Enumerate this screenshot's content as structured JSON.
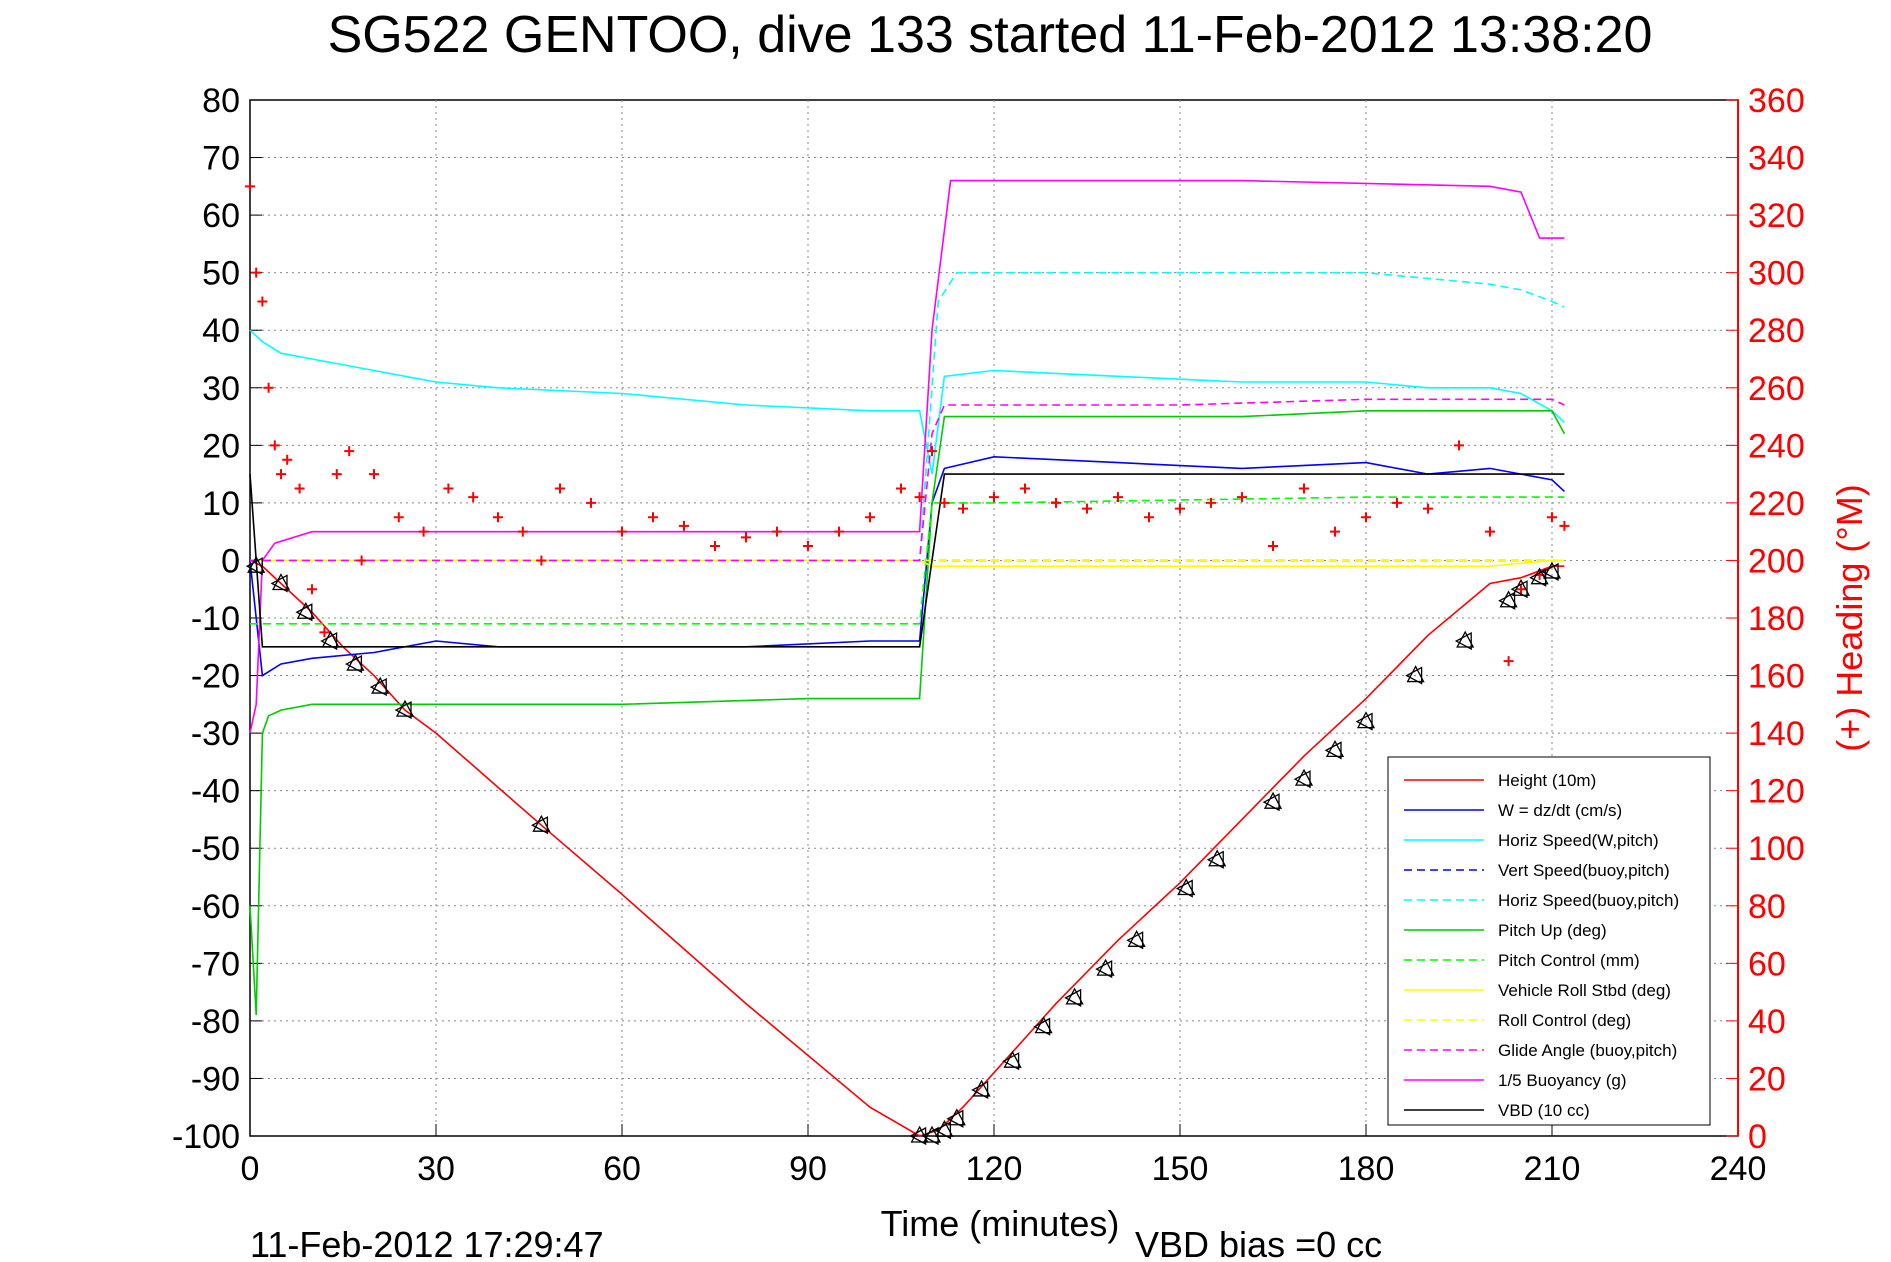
{
  "chart_data": {
    "type": "line",
    "title": "SG522 GENTOO, dive 133 started 11-Feb-2012 13:38:20",
    "xlabel": "Time (minutes)",
    "ylabel_right": "(+) Heading (°M)",
    "footer_left": "11-Feb-2012 17:29:47",
    "footer_right": "VBD bias =0 cc",
    "xlim": [
      0,
      240
    ],
    "ylim": [
      -100,
      80
    ],
    "y2lim": [
      0,
      360
    ],
    "x_ticks": [
      0,
      30,
      60,
      90,
      120,
      150,
      180,
      210,
      240
    ],
    "y_ticks": [
      80,
      70,
      60,
      50,
      40,
      30,
      20,
      10,
      0,
      -10,
      -20,
      -30,
      -40,
      -50,
      -60,
      -70,
      -80,
      -90,
      -100
    ],
    "y2_ticks": [
      360,
      340,
      320,
      300,
      280,
      260,
      240,
      220,
      200,
      180,
      160,
      140,
      120,
      100,
      80,
      60,
      40,
      20,
      0
    ],
    "grid": true,
    "legend_position": "bottom-right",
    "series": [
      {
        "name": "Height (10m)",
        "color": "#ff0000",
        "dash": false,
        "x": [
          0,
          2,
          5,
          10,
          15,
          20,
          25,
          30,
          47,
          60,
          80,
          100,
          108,
          111,
          115,
          120,
          130,
          140,
          150,
          160,
          170,
          180,
          190,
          200,
          205,
          210,
          212
        ],
        "y": [
          0,
          -1,
          -4,
          -9,
          -15,
          -20,
          -26,
          -30,
          -46,
          -58,
          -77,
          -95,
          -100,
          -99,
          -95,
          -89,
          -77,
          -66,
          -56,
          -45,
          -34,
          -24,
          -13,
          -4,
          -3,
          -1,
          -1
        ]
      },
      {
        "name": "W = dz/dt (cm/s)",
        "color": "#0000ff",
        "dash": false,
        "x": [
          0,
          2,
          5,
          10,
          20,
          30,
          40,
          60,
          80,
          100,
          108,
          110,
          112,
          120,
          140,
          160,
          180,
          190,
          200,
          205,
          210,
          212
        ],
        "y": [
          0,
          -20,
          -18,
          -17,
          -16,
          -14,
          -15,
          -15,
          -15,
          -14,
          -14,
          10,
          16,
          18,
          17,
          16,
          17,
          15,
          16,
          15,
          14,
          12
        ]
      },
      {
        "name": "Horiz Speed(W,pitch)",
        "color": "#00ffff",
        "dash": false,
        "x": [
          0,
          2,
          5,
          10,
          20,
          30,
          40,
          60,
          80,
          100,
          108,
          110,
          112,
          120,
          140,
          160,
          180,
          190,
          200,
          205,
          210,
          212
        ],
        "y": [
          40,
          38,
          36,
          35,
          33,
          31,
          30,
          29,
          27,
          26,
          26,
          15,
          32,
          33,
          32,
          31,
          31,
          30,
          30,
          29,
          26,
          24
        ]
      },
      {
        "name": "Vert Speed(buoy,pitch)",
        "color": "#0000ff",
        "dash": true,
        "x": [
          0,
          2,
          108,
          110,
          112,
          212
        ],
        "y": [
          0,
          0,
          0,
          0,
          0,
          0
        ]
      },
      {
        "name": "Horiz Speed(buoy,pitch)",
        "color": "#00ffff",
        "dash": true,
        "x": [
          0,
          5,
          108,
          111,
          114,
          150,
          180,
          200,
          205,
          210,
          212
        ],
        "y": [
          0,
          0,
          0,
          45,
          50,
          50,
          50,
          48,
          47,
          45,
          44
        ]
      },
      {
        "name": "Pitch Up (deg)",
        "color": "#00cc00",
        "dash": false,
        "x": [
          0,
          1,
          2,
          3,
          5,
          10,
          30,
          60,
          90,
          108,
          110,
          112,
          130,
          160,
          180,
          200,
          210,
          212
        ],
        "y": [
          -60,
          -79,
          -30,
          -27,
          -26,
          -25,
          -25,
          -25,
          -24,
          -24,
          10,
          25,
          25,
          25,
          26,
          26,
          26,
          22
        ]
      },
      {
        "name": "Pitch Control (mm)",
        "color": "#00ff00",
        "dash": true,
        "x": [
          0,
          3,
          60,
          108,
          110,
          120,
          180,
          212
        ],
        "y": [
          -11,
          -11,
          -11,
          -11,
          10,
          10,
          11,
          11
        ]
      },
      {
        "name": "Vehicle Roll Stbd (deg)",
        "color": "#ffff00",
        "dash": false,
        "x": [
          0,
          3,
          10,
          30,
          60,
          90,
          108,
          110,
          130,
          160,
          180,
          200,
          210,
          212
        ],
        "y": [
          0,
          0,
          0,
          0,
          0,
          0,
          0,
          -1,
          -1,
          -1,
          -1,
          -1,
          0,
          0
        ]
      },
      {
        "name": "Roll Control (deg)",
        "color": "#ffff00",
        "dash": true,
        "x": [
          0,
          212
        ],
        "y": [
          0,
          0
        ]
      },
      {
        "name": "Glide Angle (buoy,pitch)",
        "color": "#ff00ff",
        "dash": true,
        "x": [
          0,
          3,
          108,
          110,
          112,
          150,
          180,
          210,
          212
        ],
        "y": [
          0,
          0,
          0,
          22,
          27,
          27,
          28,
          28,
          27
        ]
      },
      {
        "name": "1/5 Buoyancy (g)",
        "color": "#ff00ff",
        "dash": false,
        "x": [
          0,
          1,
          2,
          4,
          10,
          30,
          60,
          90,
          108,
          110,
          113,
          130,
          160,
          200,
          205,
          208,
          212
        ],
        "y": [
          -30,
          -25,
          0,
          3,
          5,
          5,
          5,
          5,
          5,
          40,
          66,
          66,
          66,
          65,
          64,
          56,
          56
        ]
      },
      {
        "name": "VBD (10 cc)",
        "color": "#000000",
        "dash": false,
        "x": [
          0,
          1,
          2,
          108,
          110,
          112,
          150,
          212
        ],
        "y": [
          15,
          0,
          -15,
          -15,
          0,
          15,
          15,
          15
        ]
      }
    ],
    "heading_series": {
      "name": "(+) Heading",
      "color": "#ff0000",
      "marker": "+",
      "axis": "right",
      "x": [
        0,
        1,
        2,
        3,
        4,
        5,
        6,
        8,
        10,
        12,
        14,
        16,
        18,
        20,
        24,
        28,
        32,
        36,
        40,
        44,
        47,
        50,
        55,
        60,
        65,
        70,
        75,
        80,
        85,
        90,
        95,
        100,
        105,
        108,
        110,
        112,
        115,
        120,
        125,
        130,
        135,
        140,
        145,
        150,
        155,
        160,
        165,
        170,
        175,
        180,
        185,
        190,
        195,
        200,
        203,
        205,
        208,
        210,
        212
      ],
      "y": [
        330,
        300,
        290,
        260,
        240,
        230,
        235,
        225,
        190,
        175,
        230,
        238,
        200,
        230,
        215,
        210,
        225,
        222,
        215,
        210,
        200,
        225,
        220,
        210,
        215,
        212,
        205,
        208,
        210,
        205,
        210,
        215,
        225,
        222,
        238,
        220,
        218,
        222,
        225,
        220,
        218,
        222,
        215,
        218,
        220,
        222,
        205,
        225,
        210,
        215,
        220,
        218,
        240,
        210,
        165,
        190,
        195,
        215,
        212
      ]
    },
    "pressure_markers": {
      "x": [
        1,
        5,
        9,
        13,
        17,
        21,
        25,
        47,
        108,
        110,
        112,
        114,
        118,
        123,
        128,
        133,
        138,
        143,
        151,
        156,
        165,
        170,
        175,
        180,
        188,
        196,
        203,
        205,
        208,
        210
      ],
      "y": [
        -1,
        -4,
        -9,
        -14,
        -18,
        -22,
        -26,
        -46,
        -100,
        -100,
        -99,
        -97,
        -92,
        -87,
        -81,
        -76,
        -71,
        -66,
        -57,
        -52,
        -42,
        -38,
        -33,
        -28,
        -20,
        -14,
        -7,
        -5,
        -3,
        -2
      ]
    }
  }
}
